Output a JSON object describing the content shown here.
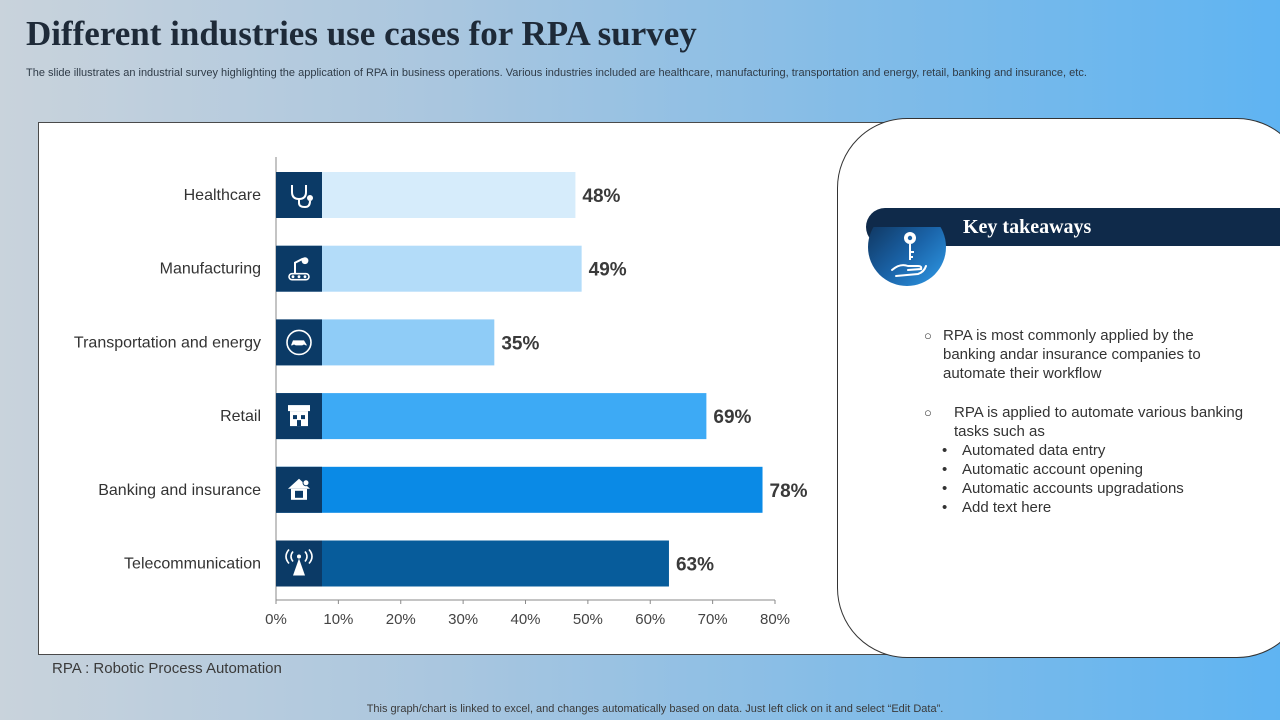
{
  "page": {
    "title": "Different industries use cases for RPA survey",
    "subtitle": "The slide illustrates an industrial survey highlighting the application of RPA in business operations. Various industries included are healthcare, manufacturing, transportation and energy, retail, banking and insurance, etc.",
    "footnote": "RPA : Robotic Process Automation",
    "bottom_note": "This graph/chart is linked to excel,  and changes automatically based on data. Just left click on it and select “Edit Data”."
  },
  "chart_data": {
    "type": "bar",
    "orientation": "horizontal",
    "categories": [
      "Healthcare",
      "Manufacturing",
      "Transportation and energy",
      "Retail",
      "Banking and insurance",
      "Telecommunication"
    ],
    "values": [
      48,
      49,
      35,
      69,
      78,
      63
    ],
    "value_labels": [
      "48%",
      "49%",
      "35%",
      "69%",
      "78%",
      "63%"
    ],
    "bar_colors": [
      "#d6ecfb",
      "#b3dcf9",
      "#8fccf7",
      "#3daaf5",
      "#0a8ae6",
      "#075c9b"
    ],
    "category_icons": [
      "stethoscope-icon",
      "robot-arm-conveyor-icon",
      "electric-car-plug-icon",
      "store-icon",
      "bank-house-icon",
      "signal-tower-icon"
    ],
    "xlim": [
      0,
      80
    ],
    "xticks": [
      "0%",
      "10%",
      "20%",
      "30%",
      "40%",
      "50%",
      "60%",
      "70%",
      "80%"
    ],
    "grid": false,
    "legend": "none"
  },
  "takeaways": {
    "title": "Key takeaways",
    "icon": "hand-holding-key-icon",
    "points": [
      {
        "marker": "○",
        "text": "RPA is most commonly  applied by the banking andar insurance  companies to automate their workflow"
      },
      {
        "marker": "○",
        "text": "RPA is applied to automate various banking tasks such as",
        "subpoints": [
          "Automated data entry",
          "Automatic account opening",
          "Automatic accounts upgradations",
          "Add text here"
        ]
      }
    ]
  }
}
